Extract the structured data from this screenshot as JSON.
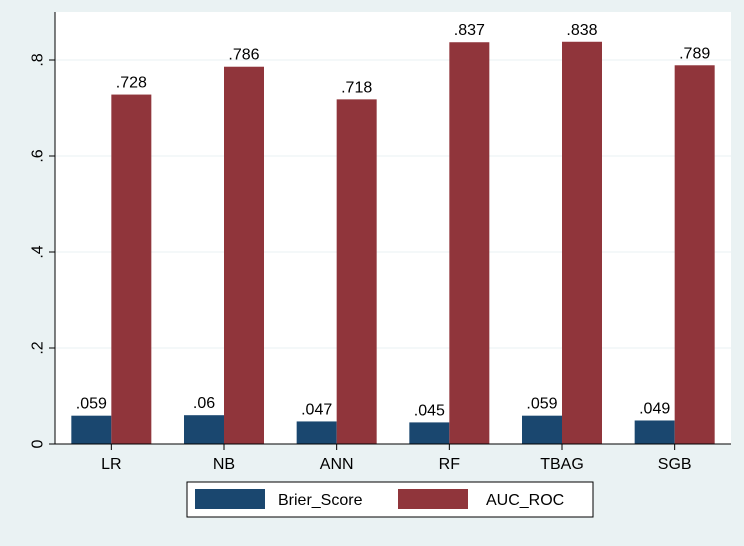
{
  "chart_data": {
    "type": "bar",
    "categories": [
      "LR",
      "NB",
      "ANN",
      "RF",
      "TBAG",
      "SGB"
    ],
    "series": [
      {
        "name": "Brier_Score",
        "values": [
          0.059,
          0.06,
          0.047,
          0.045,
          0.059,
          0.049
        ],
        "labels": [
          ".059",
          ".06",
          ".047",
          ".045",
          ".059",
          ".049"
        ],
        "color": "#1a476f"
      },
      {
        "name": "AUC_ROC",
        "values": [
          0.728,
          0.786,
          0.718,
          0.837,
          0.838,
          0.789
        ],
        "labels": [
          ".728",
          ".786",
          ".718",
          ".837",
          ".838",
          ".789"
        ],
        "color": "#90353b"
      }
    ],
    "yticks": [
      0,
      0.2,
      0.4,
      0.6,
      0.8
    ],
    "ytick_labels": [
      "0",
      ".2",
      ".4",
      ".6",
      ".8"
    ],
    "ylim": [
      0,
      0.9
    ],
    "grid": true,
    "legend_position": "bottom",
    "title": "",
    "xlabel": "",
    "ylabel": "",
    "colors": {
      "background": "#eaf2f3",
      "plot_area": "#ffffff",
      "grid": "#eaf2f3"
    }
  }
}
